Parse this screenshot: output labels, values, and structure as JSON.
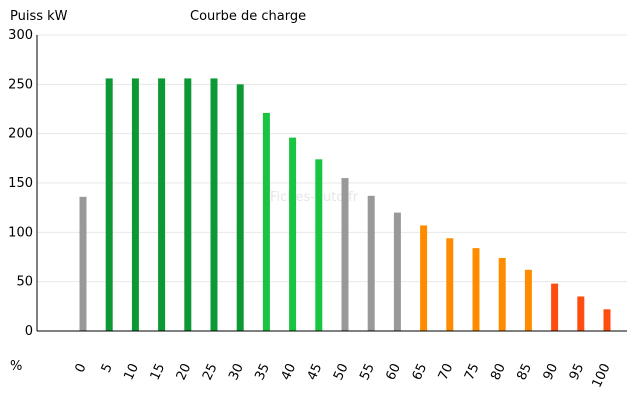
{
  "chart_data": {
    "type": "bar",
    "title": "Courbe de charge",
    "ylabel": "Puiss kW",
    "xlabel": "%",
    "watermark": "Fiches-auto.fr",
    "ylim": [
      0,
      300
    ],
    "yticks": [
      0,
      50,
      100,
      150,
      200,
      250,
      300
    ],
    "grid": true,
    "categories": [
      "0",
      "5",
      "10",
      "15",
      "20",
      "25",
      "30",
      "35",
      "40",
      "45",
      "50",
      "55",
      "60",
      "65",
      "70",
      "75",
      "80",
      "85",
      "90",
      "95",
      "100"
    ],
    "values": [
      136,
      256,
      256,
      256,
      256,
      256,
      250,
      221,
      196,
      174,
      155,
      137,
      120,
      107,
      94,
      84,
      74,
      62,
      48,
      35,
      22
    ],
    "colors": [
      "#999999",
      "#0c9934",
      "#0c9934",
      "#0c9934",
      "#0c9934",
      "#0c9934",
      "#0c9934",
      "#19c440",
      "#19c440",
      "#19c440",
      "#999999",
      "#999999",
      "#999999",
      "#ff8c00",
      "#ff8c00",
      "#ff8c00",
      "#ff8c00",
      "#ff8c00",
      "#ff4d10",
      "#ff4d10",
      "#ff4d10"
    ]
  }
}
